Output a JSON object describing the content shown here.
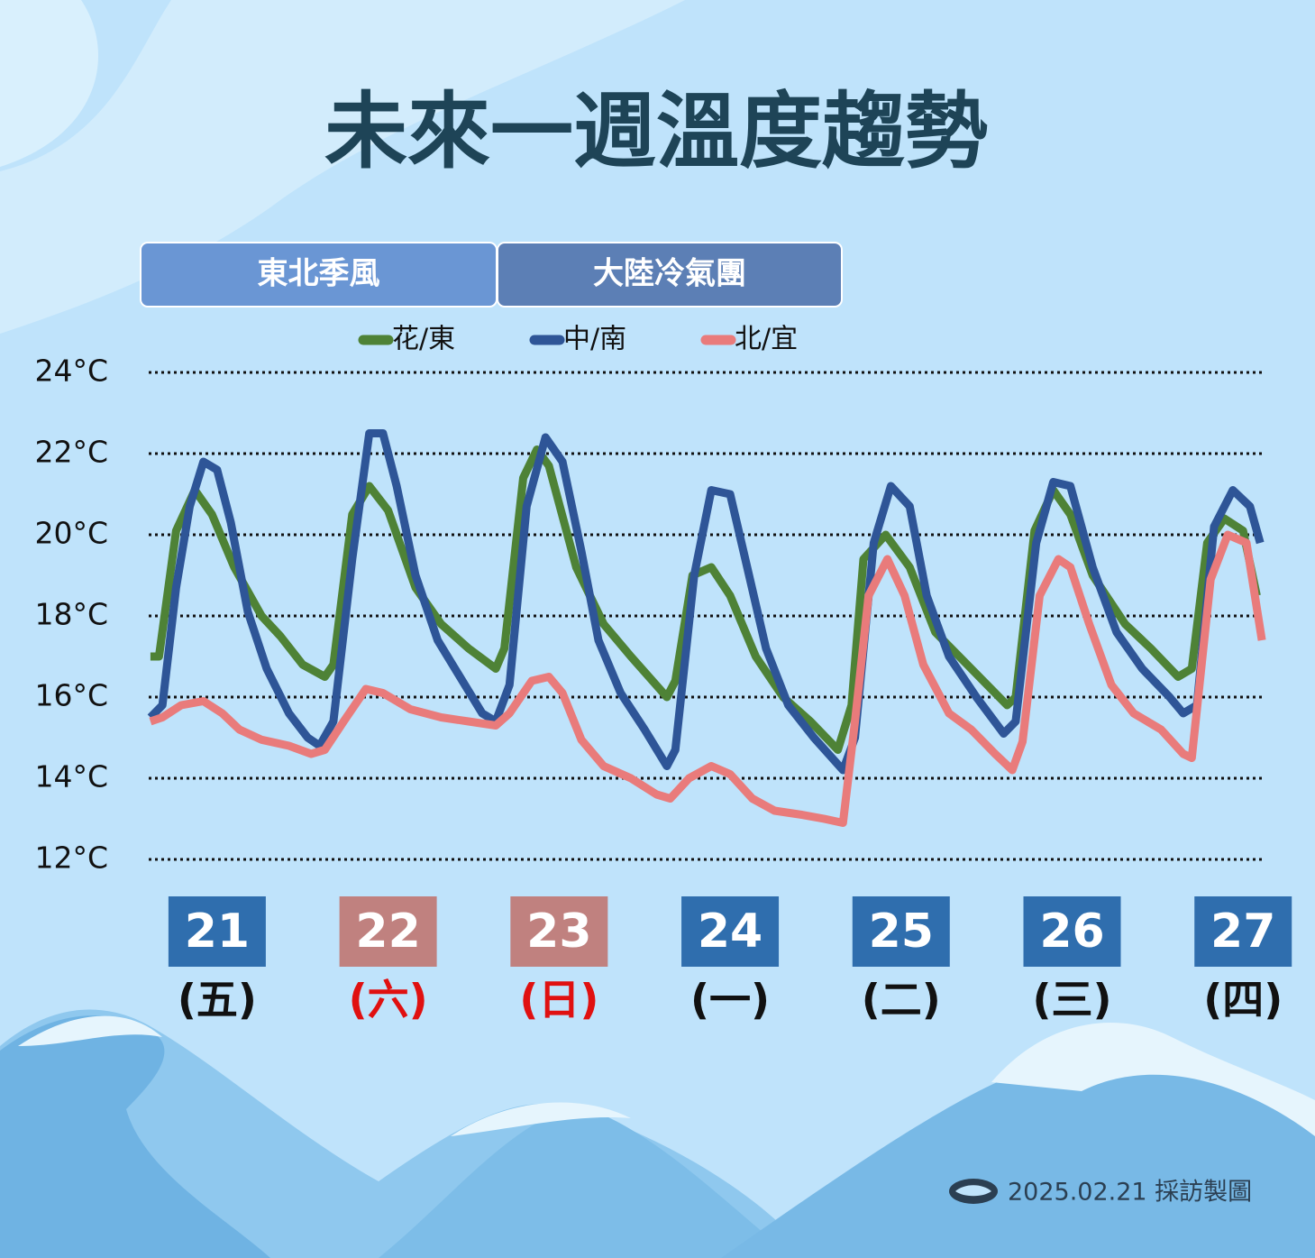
{
  "chart_data": {
    "type": "line",
    "title": "未來一週溫度趨勢",
    "periods": [
      {
        "label": "東北季風",
        "color": "#6a96d4"
      },
      {
        "label": "大陸冷氣團",
        "color": "#5c7fb5"
      }
    ],
    "xlim": [
      20.6,
      27.12
    ],
    "xticks": [
      21,
      22,
      23,
      24,
      25,
      26,
      27
    ],
    "weekday_labels": [
      "(五)",
      "(六)",
      "(日)",
      "(一)",
      "(二)",
      "(三)",
      "(四)"
    ],
    "day_box_colors": [
      "#2f6eae",
      "#c0817f",
      "#c0817f",
      "#2f6eae",
      "#2f6eae",
      "#2f6eae",
      "#2f6eae"
    ],
    "weekday_colors": [
      "#111111",
      "#e01010",
      "#e01010",
      "#111111",
      "#111111",
      "#111111",
      "#111111"
    ],
    "ylim": [
      12,
      24
    ],
    "yticks": [
      {
        "value": 12,
        "label": "12°C"
      },
      {
        "value": 14,
        "label": "14°C"
      },
      {
        "value": 16,
        "label": "16°C"
      },
      {
        "value": 18,
        "label": "18°C"
      },
      {
        "value": 20,
        "label": "20°C"
      },
      {
        "value": 22,
        "label": "22°C"
      },
      {
        "value": 24,
        "label": "24°C"
      }
    ],
    "grid": true,
    "series": [
      {
        "name": "花/東",
        "color": "#4e8236",
        "x": [
          20.61,
          20.66,
          20.76,
          20.87,
          20.97,
          21.1,
          21.26,
          21.37,
          21.5,
          21.63,
          21.68,
          21.79,
          21.89,
          22.0,
          22.16,
          22.31,
          22.47,
          22.63,
          22.68,
          22.79,
          22.87,
          22.94,
          23.1,
          23.26,
          23.42,
          23.63,
          23.68,
          23.78,
          23.89,
          24.0,
          24.15,
          24.31,
          24.47,
          24.63,
          24.71,
          24.78,
          24.91,
          25.05,
          25.2,
          25.41,
          25.62,
          25.67,
          25.78,
          25.89,
          25.99,
          26.12,
          26.31,
          26.46,
          26.62,
          26.7,
          26.79,
          26.89,
          27.0,
          27.08
        ],
        "values": [
          17.0,
          17.0,
          20.1,
          21.1,
          20.5,
          19.2,
          18.0,
          17.5,
          16.8,
          16.5,
          16.8,
          20.5,
          21.2,
          20.6,
          18.7,
          17.8,
          17.2,
          16.7,
          17.2,
          21.4,
          22.1,
          21.7,
          19.2,
          17.8,
          17.0,
          16.0,
          16.4,
          19.0,
          19.2,
          18.5,
          17.0,
          16.0,
          15.4,
          14.7,
          15.8,
          19.4,
          20.0,
          19.2,
          17.6,
          16.7,
          15.8,
          16.0,
          20.1,
          21.1,
          20.5,
          19.0,
          17.8,
          17.2,
          16.5,
          16.7,
          19.8,
          20.4,
          20.1,
          18.5
        ]
      },
      {
        "name": "中/南",
        "color": "#2e5597",
        "x": [
          20.61,
          20.68,
          20.76,
          20.84,
          20.92,
          21.0,
          21.08,
          21.18,
          21.29,
          21.42,
          21.53,
          21.6,
          21.68,
          21.79,
          21.89,
          21.97,
          22.05,
          22.16,
          22.29,
          22.42,
          22.55,
          22.63,
          22.71,
          22.81,
          22.92,
          23.02,
          23.13,
          23.23,
          23.36,
          23.5,
          23.63,
          23.68,
          23.79,
          23.89,
          24.0,
          24.1,
          24.21,
          24.34,
          24.49,
          24.66,
          24.73,
          24.84,
          24.94,
          25.05,
          25.15,
          25.28,
          25.44,
          25.6,
          25.67,
          25.79,
          25.89,
          25.99,
          26.12,
          26.26,
          26.41,
          26.57,
          26.65,
          26.73,
          26.83,
          26.94,
          27.04,
          27.1
        ],
        "values": [
          15.5,
          15.8,
          18.7,
          20.7,
          21.8,
          21.6,
          20.3,
          18.1,
          16.7,
          15.6,
          15.0,
          14.8,
          15.4,
          19.4,
          22.5,
          22.5,
          21.2,
          19.0,
          17.4,
          16.5,
          15.6,
          15.4,
          16.3,
          20.7,
          22.4,
          21.8,
          19.6,
          17.4,
          16.1,
          15.2,
          14.3,
          14.7,
          19.0,
          21.1,
          21.0,
          19.2,
          17.2,
          15.8,
          15.0,
          14.2,
          15.0,
          19.8,
          21.2,
          20.7,
          18.5,
          17.0,
          16.0,
          15.1,
          15.4,
          19.8,
          21.3,
          21.2,
          19.2,
          17.6,
          16.7,
          16.0,
          15.6,
          15.8,
          20.2,
          21.1,
          20.7,
          19.8
        ]
      },
      {
        "name": "北/宜",
        "color": "#e97b7b",
        "x": [
          20.61,
          20.68,
          20.79,
          20.92,
          21.03,
          21.13,
          21.26,
          21.42,
          21.55,
          21.63,
          21.74,
          21.87,
          21.97,
          22.13,
          22.31,
          22.47,
          22.63,
          22.71,
          22.84,
          22.94,
          23.02,
          23.13,
          23.26,
          23.42,
          23.57,
          23.65,
          23.76,
          23.89,
          24.0,
          24.13,
          24.26,
          24.42,
          24.55,
          24.66,
          24.73,
          24.81,
          24.92,
          25.02,
          25.13,
          25.28,
          25.41,
          25.55,
          25.65,
          25.71,
          25.81,
          25.92,
          25.99,
          26.1,
          26.23,
          26.36,
          26.52,
          26.65,
          26.7,
          26.81,
          26.91,
          27.02,
          27.11
        ],
        "values": [
          15.4,
          15.5,
          15.8,
          15.9,
          15.6,
          15.2,
          14.95,
          14.8,
          14.6,
          14.7,
          15.4,
          16.2,
          16.1,
          15.7,
          15.5,
          15.4,
          15.3,
          15.6,
          16.4,
          16.5,
          16.1,
          14.95,
          14.3,
          14.0,
          13.6,
          13.5,
          14.0,
          14.3,
          14.1,
          13.5,
          13.2,
          13.1,
          13.0,
          12.9,
          15.4,
          18.5,
          19.4,
          18.5,
          16.8,
          15.6,
          15.2,
          14.6,
          14.2,
          14.9,
          18.5,
          19.4,
          19.2,
          17.8,
          16.3,
          15.6,
          15.2,
          14.6,
          14.5,
          18.9,
          20.0,
          19.8,
          17.4
        ]
      }
    ]
  },
  "footer": "2025.02.21  採訪製圖"
}
